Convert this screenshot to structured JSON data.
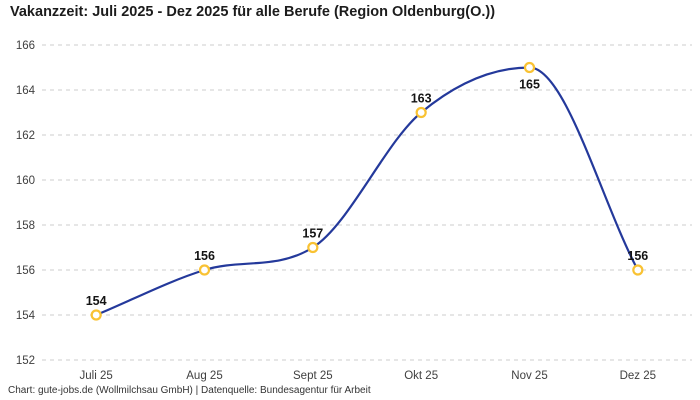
{
  "chart_data": {
    "type": "line",
    "title": "Vakanzzeit: Juli 2025 - Dez 2025 für alle Berufe (Region Oldenburg(O.))",
    "categories": [
      "Juli 25",
      "Aug 25",
      "Sept 25",
      "Okt 25",
      "Nov 25",
      "Dez 25"
    ],
    "values": [
      154,
      156,
      157,
      163,
      165,
      156
    ],
    "point_labels": [
      "154",
      "156",
      "157",
      "163",
      "165",
      "156"
    ],
    "xlabel": "",
    "ylabel": "",
    "ylim": [
      152,
      166
    ],
    "y_ticks": [
      152,
      154,
      156,
      158,
      160,
      162,
      164,
      166
    ],
    "grid": "horizontal-dashed",
    "legend": "none",
    "line_interpolation": "monotone-cubic"
  },
  "footer": {
    "source_note": "Chart: gute-jobs.de (Wollmilchsau GmbH) | Datenquelle: Bundesagentur für Arbeit"
  },
  "colors": {
    "background": "#ffffff",
    "line": "#24399b",
    "marker_ring": "#f9c233",
    "marker_fill": "#ffffff",
    "grid": "#cccccc",
    "title_text": "#1c1c1c",
    "axis_text": "#404040",
    "point_label_text": "#141414",
    "footer_text": "#333333"
  }
}
